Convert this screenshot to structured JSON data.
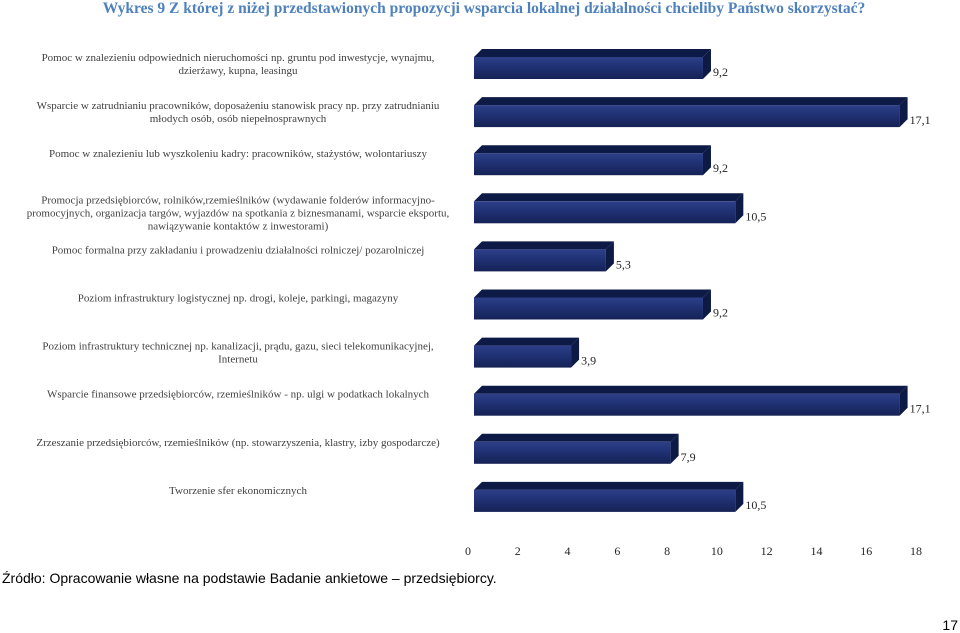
{
  "chart_data": {
    "type": "bar",
    "orientation": "horizontal",
    "title": "Wykres 9 Z której z niżej przedstawionych propozycji wsparcia lokalnej działalności chcieliby Państwo skorzystać?",
    "categories": [
      [
        "Pomoc w znalezieniu odpowiednich nieruchomości np. gruntu pod inwestycje, wynajmu,",
        "dzierżawy, kupna, leasingu"
      ],
      [
        "Wsparcie w zatrudnianiu pracowników, doposażeniu stanowisk pracy np. przy zatrudnianiu",
        "młodych osób, osób niepełnosprawnych"
      ],
      [
        "Pomoc w znalezieniu lub wyszkoleniu kadry: pracowników, stażystów, wolontariuszy"
      ],
      [
        "Promocja przedsiębiorców, rolników,rzemieślników (wydawanie folderów informacyjno-",
        "promocyjnych, organizacja targów, wyjazdów na spotkania z biznesmanami, wsparcie eksportu,",
        "nawiązywanie kontaktów z inwestorami)"
      ],
      [
        "Pomoc formalna przy zakładaniu i prowadzeniu działalności rolniczej/ pozarolniczej"
      ],
      [
        "Poziom infrastruktury logistycznej np. drogi, koleje, parkingi, magazyny"
      ],
      [
        "Poziom infrastruktury technicznej np. kanalizacji, prądu, gazu, sieci telekomunikacyjnej,",
        "Internetu"
      ],
      [
        "Wsparcie finansowe przedsiębiorców, rzemieślników - np. ulgi w podatkach lokalnych"
      ],
      [
        "Zrzeszanie przedsiębiorców, rzemieślników (np. stowarzyszenia, klastry, izby gospodarcze)"
      ],
      [
        "Tworzenie sfer ekonomicznych"
      ]
    ],
    "values": [
      9.2,
      17.1,
      9.2,
      10.5,
      5.3,
      9.2,
      3.9,
      17.1,
      7.9,
      10.5
    ],
    "value_labels": [
      "9,2",
      "17,1",
      "9,2",
      "10,5",
      "5,3",
      "9,2",
      "3,9",
      "17,1",
      "7,9",
      "10,5"
    ],
    "xlim": [
      0,
      18
    ],
    "xticks": [
      "0",
      "2",
      "4",
      "6",
      "8",
      "10",
      "12",
      "14",
      "16",
      "18"
    ],
    "grid": false,
    "legend": "none",
    "bar_color": "#1f3071",
    "bar_shade_color": "#0d1a45"
  },
  "source": "Źródło: Opracowanie własne na podstawie Badanie ankietowe – przedsiębiorcy.",
  "page_number": "17"
}
